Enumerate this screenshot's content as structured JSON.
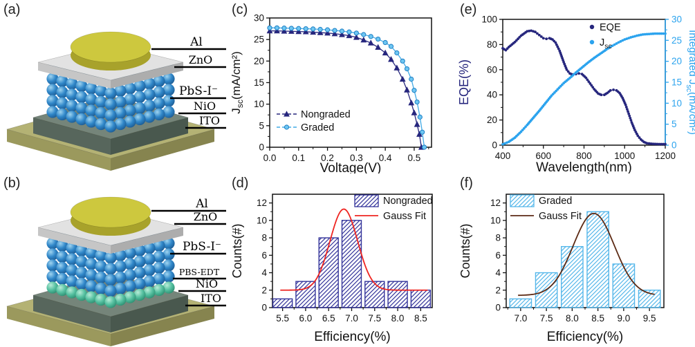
{
  "figure": {
    "background": "#ffffff",
    "panels": {
      "a": {
        "tag": "(a)",
        "layers": [
          "Al",
          "ZnO",
          "PbS-I⁻",
          "NiO",
          "ITO"
        ]
      },
      "b": {
        "tag": "(b)",
        "layers": [
          "Al",
          "ZnO",
          "PbS-I⁻",
          "PBS-EDT",
          "NiO",
          "ITO"
        ]
      },
      "c": {
        "tag": "(c)"
      },
      "d": {
        "tag": "(d)"
      },
      "e": {
        "tag": "(e)"
      },
      "f": {
        "tag": "(f)"
      }
    },
    "colors": {
      "navy": "#26267d",
      "light_blue": "#41aae6",
      "light_blue_axis": "#2ba3ee",
      "red": "#ee2420",
      "brown": "#5c2a14",
      "bar_navy": "#33339a",
      "bar_blue": "#55b7ea",
      "sphere_blue": "#3087c9",
      "sphere_blue_hi": "#9fd4f0",
      "sphere_blue_lo": "#1d5c94",
      "sphere_green": "#55c0a0",
      "sphere_green_hi": "#b8ecd8",
      "sphere_green_lo": "#2e8f72",
      "gold_top": "#cdc83e",
      "gold_side": "#a8a22b",
      "plate_top": "#e2e2e2",
      "plate_front": "#c6c6c6",
      "plate_side": "#adadad",
      "nio_top": "#75857a",
      "nio_front": "#57665c",
      "nio_side": "#49584e",
      "ito_top": "#b4b274",
      "ito_front": "#9b995d",
      "ito_side": "#86844f"
    }
  },
  "chart_data": [
    {
      "panel": "c",
      "type": "line",
      "xlabel": "Voltage(V)",
      "ylabel": "J_{sc}(mA/cm²)",
      "xlim": [
        0,
        0.56
      ],
      "ylim": [
        0,
        30
      ],
      "xticks": [
        0,
        0.1,
        0.2,
        0.3,
        0.4,
        0.5
      ],
      "xtick_decimals": 1,
      "yticks": [
        0,
        5,
        10,
        15,
        20,
        25,
        30
      ],
      "legend_position": "lower-left",
      "series": [
        {
          "name": "Nongraded",
          "color": "#26267d",
          "marker": "triangle",
          "x": [
            0,
            0.025,
            0.05,
            0.075,
            0.1,
            0.125,
            0.15,
            0.175,
            0.2,
            0.225,
            0.25,
            0.275,
            0.3,
            0.325,
            0.35,
            0.375,
            0.4,
            0.42,
            0.44,
            0.46,
            0.475,
            0.49,
            0.5,
            0.51,
            0.518,
            0.525
          ],
          "y": [
            27.0,
            27.0,
            26.95,
            26.9,
            26.85,
            26.8,
            26.7,
            26.6,
            26.5,
            26.35,
            26.15,
            25.9,
            25.5,
            24.9,
            24.2,
            23.2,
            21.9,
            20.4,
            18.4,
            15.8,
            13.3,
            10.3,
            8.0,
            5.3,
            3.0,
            0
          ]
        },
        {
          "name": "Graded",
          "color": "#41aae6",
          "marker": "circle",
          "marker_fill": "#6ec6f2",
          "marker_edge": "#1d7fc4",
          "x": [
            0,
            0.025,
            0.05,
            0.075,
            0.1,
            0.125,
            0.15,
            0.175,
            0.2,
            0.225,
            0.25,
            0.275,
            0.3,
            0.325,
            0.35,
            0.375,
            0.4,
            0.42,
            0.44,
            0.46,
            0.475,
            0.49,
            0.5,
            0.51,
            0.52,
            0.528,
            0.535
          ],
          "y": [
            27.7,
            27.7,
            27.65,
            27.6,
            27.55,
            27.5,
            27.45,
            27.35,
            27.25,
            27.1,
            26.95,
            26.75,
            26.5,
            26.15,
            25.7,
            25.1,
            24.3,
            23.4,
            21.9,
            20.0,
            18.2,
            15.8,
            13.2,
            10.5,
            7.0,
            3.5,
            0
          ]
        }
      ]
    },
    {
      "panel": "d",
      "type": "bar",
      "xlabel": "Efficiency(%)",
      "ylabel": "Counts(#)",
      "categories": [
        5.5,
        6.0,
        6.5,
        7.0,
        7.5,
        8.0,
        8.5
      ],
      "values": [
        1,
        3,
        8,
        10,
        3,
        3,
        2
      ],
      "xlim": [
        5.28,
        8.75
      ],
      "ylim": [
        0,
        13
      ],
      "xtick_decimals": 1,
      "yticks": [
        0,
        2,
        4,
        6,
        8,
        10,
        12
      ],
      "bar_color": "#33339a",
      "bar_width": 0.42,
      "hatch": true,
      "series_label": "Nongraded",
      "legend_position": "upper-right",
      "gauss_fit": {
        "label": "Gauss Fit",
        "color": "#ee2420",
        "center": 6.83,
        "sigma": 0.3,
        "amplitude": 9.3,
        "baseline": 2.0,
        "range": [
          5.45,
          8.65
        ]
      }
    },
    {
      "panel": "e",
      "type": "line-dual-axis",
      "xlabel": "Wavelength(nm)",
      "ylabel_left": "EQE(%)",
      "ylabel_right": "Integrated J_{sc}(mA/cm²)",
      "xlim": [
        400,
        1200
      ],
      "ylim_left": [
        0,
        100
      ],
      "ylim_right": [
        0,
        30
      ],
      "xticks": [
        400,
        600,
        800,
        1000,
        1200
      ],
      "xtick_decimals": 0,
      "yticks_left": [
        0,
        20,
        40,
        60,
        80,
        100
      ],
      "yticks_right": [
        0,
        5,
        10,
        15,
        20,
        25,
        30
      ],
      "axis_color_left": "#26267d",
      "axis_color_right": "#2ba3ee",
      "legend_position": "upper-middle",
      "series": [
        {
          "name": "EQE",
          "axis": "left",
          "color": "#26267d",
          "marker": "circle",
          "x": [
            400,
            415,
            430,
            460,
            490,
            520,
            540,
            560,
            580,
            600,
            615,
            630,
            645,
            660,
            680,
            700,
            715,
            730,
            745,
            760,
            775,
            790,
            810,
            830,
            850,
            870,
            885,
            900,
            915,
            930,
            945,
            960,
            975,
            990,
            1005,
            1020,
            1035,
            1050,
            1065,
            1080,
            1095,
            1110,
            1140,
            1170,
            1200
          ],
          "y": [
            77,
            75.5,
            78,
            82,
            87,
            90.5,
            91,
            90,
            87.5,
            85,
            84.5,
            85,
            84,
            81.5,
            75,
            66,
            60,
            57,
            56,
            56.5,
            57,
            56.5,
            53.5,
            49,
            44.5,
            41,
            40,
            40,
            41.5,
            43.5,
            44,
            43.5,
            41.5,
            37.5,
            32,
            25,
            18,
            12,
            7.5,
            4.5,
            2.5,
            1.5,
            1,
            0.8,
            0.8
          ]
        },
        {
          "name": "J_{sc}",
          "axis": "right",
          "color": "#2ba3ee",
          "marker": "circle",
          "x": [
            400,
            430,
            460,
            490,
            520,
            550,
            580,
            610,
            640,
            670,
            700,
            730,
            760,
            790,
            820,
            850,
            880,
            910,
            940,
            970,
            1000,
            1030,
            1060,
            1090,
            1120,
            1150,
            1200
          ],
          "y": [
            0.2,
            0.8,
            1.8,
            3.2,
            4.8,
            6.5,
            8.2,
            10,
            11.8,
            13.3,
            14.8,
            16,
            17.3,
            18.5,
            19.7,
            20.8,
            21.8,
            22.8,
            23.7,
            24.5,
            25.2,
            25.7,
            26.1,
            26.4,
            26.5,
            26.6,
            26.6
          ]
        }
      ]
    },
    {
      "panel": "f",
      "type": "bar",
      "xlabel": "Efficiency(%)",
      "ylabel": "Counts(#)",
      "categories": [
        7.0,
        7.5,
        8.0,
        8.5,
        9.0,
        9.5
      ],
      "values": [
        1,
        4,
        7,
        11,
        5,
        2
      ],
      "xlim": [
        6.72,
        9.78
      ],
      "ylim": [
        0,
        13
      ],
      "xtick_decimals": 1,
      "yticks": [
        0,
        2,
        4,
        6,
        8,
        10,
        12
      ],
      "bar_color": "#55b7ea",
      "bar_width": 0.42,
      "hatch": true,
      "series_label": "Graded",
      "legend_position": "upper-left",
      "gauss_fit": {
        "label": "Gauss Fit",
        "color": "#5c2a14",
        "center": 8.42,
        "sigma": 0.4,
        "amplitude": 9.4,
        "baseline": 1.4,
        "range": [
          6.95,
          9.6
        ]
      }
    }
  ]
}
